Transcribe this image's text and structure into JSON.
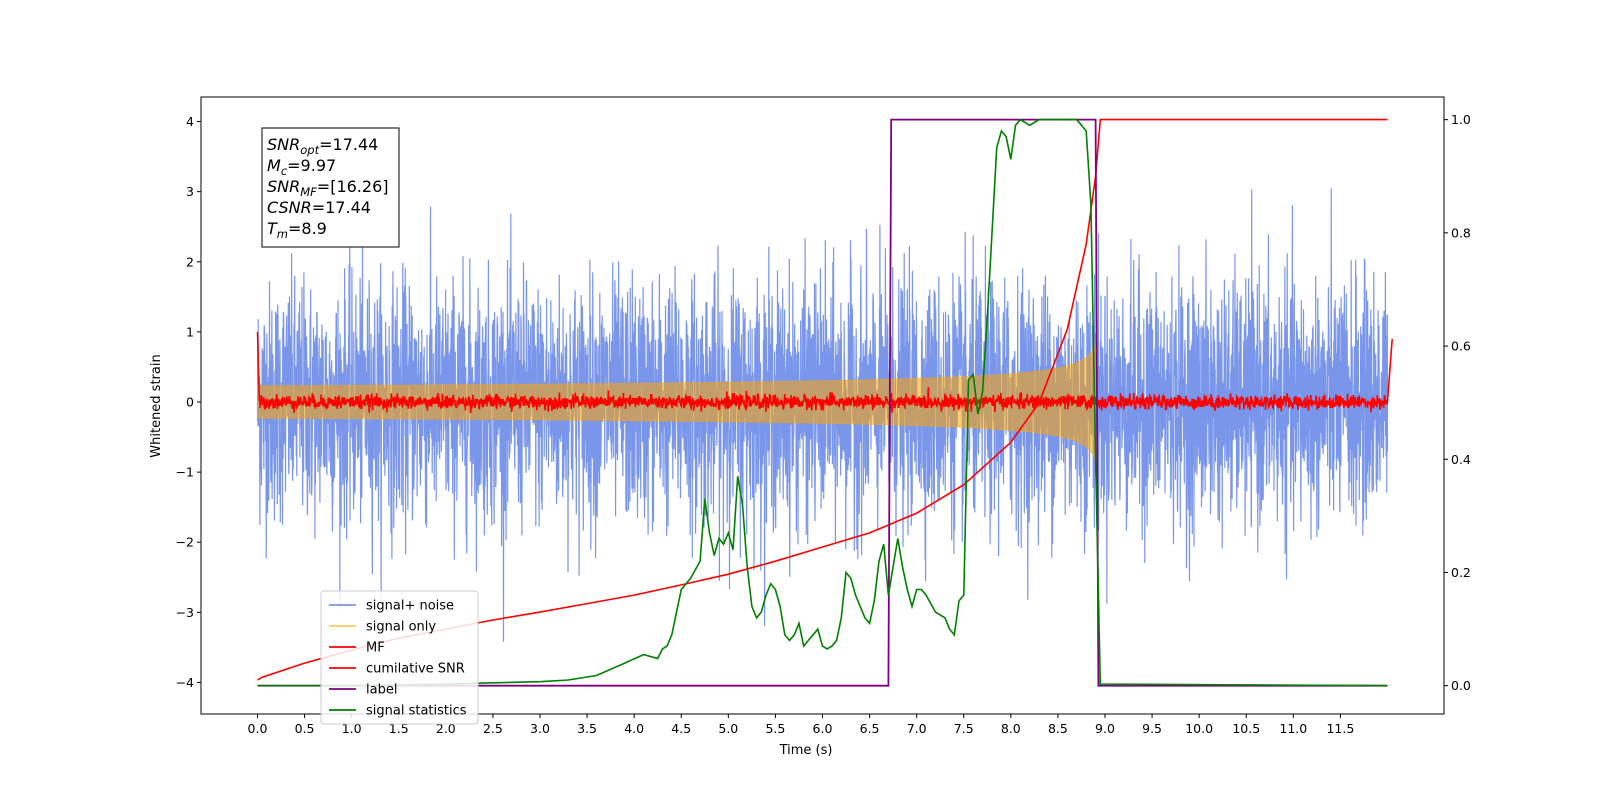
{
  "chart_data": {
    "type": "line",
    "title": "",
    "xlabel": "Time (s)",
    "ylabel": "Whitened strain",
    "xlim": [
      -0.6,
      12.6
    ],
    "ylim": [
      -4.45,
      4.35
    ],
    "y2lim": [
      -0.05,
      1.04
    ],
    "x_ticks": [
      "0.0",
      "0.5",
      "1.0",
      "1.5",
      "2.0",
      "2.5",
      "3.0",
      "3.5",
      "4.0",
      "4.5",
      "5.0",
      "5.5",
      "6.0",
      "6.5",
      "7.0",
      "7.5",
      "8.0",
      "8.5",
      "9.0",
      "9.5",
      "10.0",
      "10.5",
      "11.0",
      "11.5"
    ],
    "y_ticks": [
      "4",
      "3",
      "2",
      "1",
      "0",
      "−1",
      "−2",
      "−3",
      "−4"
    ],
    "y2_ticks": [
      "1.0",
      "0.8",
      "0.6",
      "0.4",
      "0.2",
      "0.0"
    ],
    "colors": {
      "noise": "#4169e1",
      "signal": "#ffa500",
      "mf": "#ff0000",
      "csnr": "#ff0000",
      "label": "#800080",
      "stats": "#008000"
    },
    "annotation": {
      "lines": [
        {
          "sym": "SNR",
          "sub": "opt",
          "val": "=17.44"
        },
        {
          "sym": "M",
          "sub": "c",
          "val": "=9.97"
        },
        {
          "sym": "SNR",
          "sub": "MF",
          "val": "=[16.26]"
        },
        {
          "sym": "CSNR",
          "sub": "",
          "val": "=17.44"
        },
        {
          "sym": "T",
          "sub": "m",
          "val": "=8.9"
        }
      ]
    },
    "legend": {
      "placement": "lower-left",
      "entries": [
        "signal+ noise",
        "signal only",
        "MF",
        "cumilative SNR",
        "label",
        "signal statistics"
      ]
    },
    "series": [
      {
        "name": "signal+ noise",
        "axis": "left",
        "style": "noise",
        "x_range": [
          0,
          12
        ],
        "envelope_std": 0.85
      },
      {
        "name": "signal only",
        "axis": "left",
        "style": "chirp",
        "x_range": [
          0,
          8.9
        ],
        "peak_amplitude": 1.15
      },
      {
        "name": "MF",
        "axis": "left",
        "x": [
          0,
          0.02,
          12,
          12.05
        ],
        "y": [
          1.0,
          0.0,
          0.0,
          0.9
        ],
        "noise_std": 0.05
      },
      {
        "name": "cumilative SNR",
        "axis": "right",
        "x": [
          0,
          0.05,
          0.5,
          1,
          1.5,
          2,
          2.5,
          3,
          3.5,
          4,
          4.5,
          5,
          5.5,
          6,
          6.5,
          7,
          7.5,
          8,
          8.3,
          8.6,
          8.8,
          8.9,
          8.95,
          12
        ],
        "y": [
          0.01,
          0.015,
          0.04,
          0.063,
          0.084,
          0.1,
          0.116,
          0.13,
          0.145,
          0.16,
          0.178,
          0.197,
          0.22,
          0.245,
          0.27,
          0.305,
          0.355,
          0.43,
          0.5,
          0.63,
          0.78,
          0.9,
          1.0,
          1.0
        ]
      },
      {
        "name": "label",
        "axis": "right",
        "x": [
          0,
          6.7,
          6.73,
          8.9,
          8.93,
          12
        ],
        "y": [
          0,
          0,
          1,
          1,
          0,
          0
        ]
      },
      {
        "name": "signal statistics",
        "axis": "right",
        "x": [
          0,
          1,
          2,
          3,
          3.3,
          3.6,
          3.9,
          4.1,
          4.25,
          4.3,
          4.35,
          4.4,
          4.45,
          4.5,
          4.6,
          4.7,
          4.75,
          4.8,
          4.85,
          4.9,
          4.95,
          5.0,
          5.05,
          5.1,
          5.15,
          5.2,
          5.25,
          5.3,
          5.35,
          5.4,
          5.45,
          5.5,
          5.55,
          5.6,
          5.65,
          5.7,
          5.75,
          5.8,
          5.85,
          5.9,
          5.95,
          6.0,
          6.05,
          6.1,
          6.15,
          6.2,
          6.25,
          6.3,
          6.35,
          6.4,
          6.45,
          6.5,
          6.55,
          6.6,
          6.65,
          6.7,
          6.75,
          6.8,
          6.85,
          6.9,
          6.95,
          7.0,
          7.05,
          7.1,
          7.2,
          7.3,
          7.35,
          7.4,
          7.45,
          7.5,
          7.55,
          7.6,
          7.65,
          7.7,
          7.75,
          7.8,
          7.85,
          7.9,
          7.95,
          8.0,
          8.05,
          8.1,
          8.2,
          8.3,
          8.4,
          8.5,
          8.6,
          8.7,
          8.8,
          8.85,
          8.9,
          8.95,
          12
        ],
        "y": [
          0,
          0,
          0.003,
          0.007,
          0.01,
          0.018,
          0.04,
          0.055,
          0.048,
          0.065,
          0.07,
          0.09,
          0.13,
          0.17,
          0.19,
          0.22,
          0.33,
          0.27,
          0.23,
          0.26,
          0.25,
          0.27,
          0.24,
          0.37,
          0.32,
          0.21,
          0.14,
          0.12,
          0.13,
          0.16,
          0.18,
          0.17,
          0.14,
          0.09,
          0.08,
          0.09,
          0.11,
          0.07,
          0.08,
          0.09,
          0.1,
          0.07,
          0.065,
          0.07,
          0.08,
          0.12,
          0.2,
          0.19,
          0.16,
          0.14,
          0.12,
          0.11,
          0.15,
          0.22,
          0.25,
          0.16,
          0.21,
          0.26,
          0.21,
          0.17,
          0.14,
          0.17,
          0.17,
          0.16,
          0.13,
          0.12,
          0.1,
          0.09,
          0.15,
          0.16,
          0.54,
          0.55,
          0.48,
          0.52,
          0.65,
          0.8,
          0.95,
          0.98,
          0.97,
          0.93,
          0.99,
          1.0,
          0.99,
          1.0,
          1.0,
          1.0,
          1.0,
          1.0,
          0.98,
          0.85,
          0.4,
          0.003,
          0
        ]
      }
    ]
  }
}
